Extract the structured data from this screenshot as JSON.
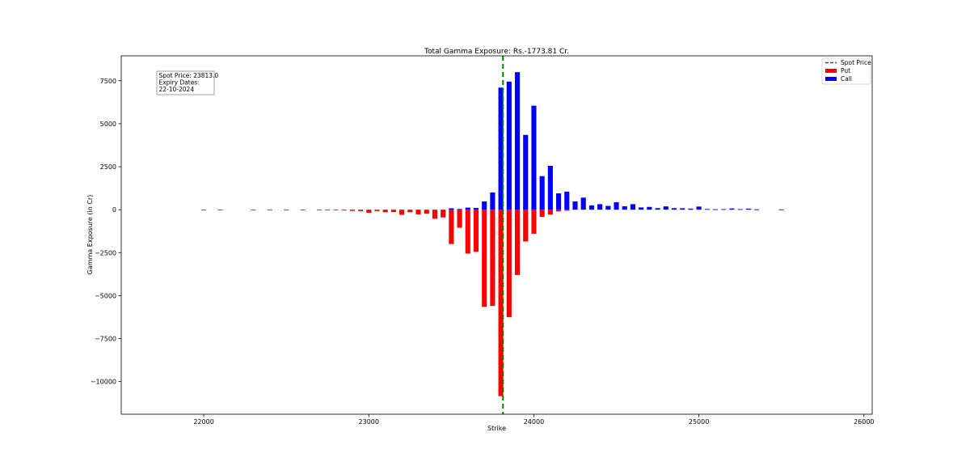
{
  "chart_data": {
    "type": "bar",
    "title": "Total Gamma Exposure: Rs.-1773.81 Cr.",
    "xlabel": "Strike",
    "ylabel": "Gamma Exposure (in Cr)",
    "xlim": [
      21500,
      26050
    ],
    "ylim": [
      -11900,
      8950
    ],
    "xticks": [
      22000,
      23000,
      24000,
      25000,
      26000
    ],
    "yticks": [
      -10000,
      -7500,
      -5000,
      -2500,
      0,
      2500,
      5000,
      7500
    ],
    "grid": false,
    "legend_position": "top-right",
    "spot_price_line": {
      "name": "Spot Price",
      "x": 23813.0,
      "color": "#008000",
      "style": "dashed"
    },
    "annotation": {
      "spot_label": "Spot Price: 23813.0",
      "expiry_label": "Expiry Dates:",
      "expiry_value": "22-10-2024"
    },
    "bar_width": 30,
    "series": [
      {
        "name": "Put",
        "color": "#ff0000",
        "x": [
          22000,
          22100,
          22300,
          22400,
          22500,
          22600,
          22700,
          22750,
          22800,
          22850,
          22900,
          22950,
          23000,
          23050,
          23100,
          23150,
          23200,
          23250,
          23300,
          23350,
          23400,
          23450,
          23500,
          23550,
          23600,
          23650,
          23700,
          23750,
          23800,
          23850,
          23900,
          23950,
          24000,
          24050,
          24100,
          24150,
          24200
        ],
        "values": [
          -10,
          -10,
          -10,
          -15,
          -25,
          -20,
          -40,
          -30,
          -40,
          -50,
          -70,
          -80,
          -180,
          -80,
          -150,
          -140,
          -300,
          -150,
          -270,
          -230,
          -530,
          -450,
          -2000,
          -1050,
          -2550,
          -2450,
          -5650,
          -5600,
          -10850,
          -6250,
          -3800,
          -1850,
          -1400,
          -420,
          -280,
          -100,
          -60
        ]
      },
      {
        "name": "Call",
        "color": "#0000ff",
        "x": [
          23500,
          23550,
          23600,
          23650,
          23700,
          23750,
          23800,
          23850,
          23900,
          23950,
          24000,
          24050,
          24100,
          24150,
          24200,
          24250,
          24300,
          24350,
          24400,
          24450,
          24500,
          24550,
          24600,
          24650,
          24700,
          24750,
          24800,
          24850,
          24900,
          24950,
          25000,
          25050,
          25100,
          25150,
          25200,
          25250,
          25300,
          25350,
          25500
        ],
        "values": [
          80,
          40,
          120,
          100,
          480,
          1000,
          7100,
          7450,
          8000,
          4350,
          6050,
          1950,
          2550,
          950,
          1050,
          480,
          700,
          250,
          320,
          220,
          430,
          200,
          320,
          130,
          160,
          90,
          190,
          90,
          80,
          60,
          180,
          40,
          25,
          30,
          70,
          30,
          60,
          20,
          15
        ]
      }
    ]
  }
}
